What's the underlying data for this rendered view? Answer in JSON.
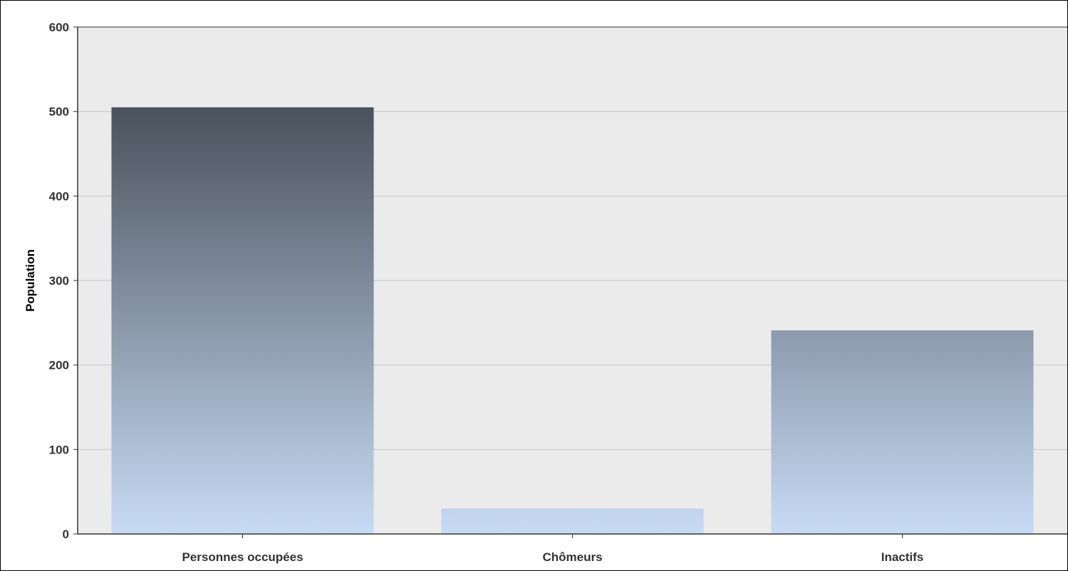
{
  "chart_data": {
    "type": "bar",
    "title": "",
    "xlabel": "",
    "ylabel": "Population",
    "categories": [
      "Personnes occupées",
      "Chômeurs",
      "Inactifs"
    ],
    "values": [
      505,
      30,
      241
    ],
    "ylim": [
      0,
      600
    ],
    "yticks": [
      "0",
      "100",
      "200",
      "300",
      "400",
      "500",
      "600"
    ],
    "grid": true,
    "legend": "none",
    "colors": {
      "plot_background": "#ebebeb",
      "gridline": "#c6c6c6",
      "axis": "#333333",
      "bar_gradient_top": "#4a525c",
      "bar_gradient_bottom": "#c8dbf5"
    }
  }
}
